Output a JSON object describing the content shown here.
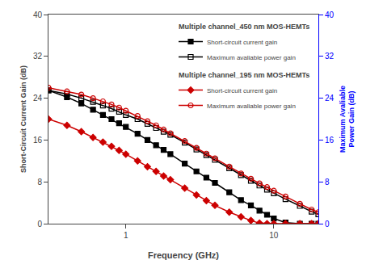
{
  "chart_data": {
    "type": "line",
    "xlabel": "Frequency (GHz)",
    "ylabel": "Short-Circuit Current Gain (dB)",
    "y2label": "Maximum Avaliable\nPower Gain (dB)",
    "log": "x",
    "grid": false,
    "legend": "upper right",
    "xlim": [
      0.3,
      20
    ],
    "xticks": [
      1,
      10
    ],
    "ylim": [
      0,
      40
    ],
    "yticks": [
      0,
      8,
      16,
      24,
      32,
      40
    ],
    "y2lim": [
      0,
      40
    ],
    "y2ticks": [
      0,
      8,
      16,
      24,
      32,
      40
    ],
    "x": [
      0.3,
      0.4,
      0.5,
      0.6,
      0.7,
      0.8,
      0.9,
      1.0,
      1.2,
      1.4,
      1.6,
      1.8,
      2.0,
      2.5,
      3.0,
      3.5,
      4.0,
      5.0,
      6.0,
      7.0,
      8.0,
      9.0,
      10.0,
      12.0,
      15.0,
      18.0,
      20.0
    ],
    "series": [
      {
        "name": "Short-circuit current gain",
        "group": "Multiple channel_450 nm MOS-HEMTs",
        "color": "#000000",
        "marker": "square",
        "values": [
          25.5,
          24.2,
          23.0,
          21.8,
          20.8,
          20.0,
          19.2,
          18.5,
          17.2,
          16.0,
          15.0,
          14.1,
          13.3,
          11.5,
          10.0,
          8.8,
          7.8,
          6.0,
          4.5,
          3.5,
          2.5,
          1.7,
          1.0,
          0.2,
          0.0,
          0.0,
          0.0
        ]
      },
      {
        "name": "Maximum avaliable power gain",
        "group": "Multiple channel_450 nm MOS-HEMTs",
        "color": "#000000",
        "marker": "square-open",
        "values": [
          25.5,
          24.8,
          24.0,
          23.3,
          22.6,
          22.0,
          21.4,
          20.8,
          20.0,
          19.1,
          18.3,
          17.6,
          17.0,
          15.5,
          14.2,
          13.1,
          12.2,
          10.6,
          9.3,
          8.2,
          7.3,
          6.5,
          5.8,
          4.7,
          3.4,
          2.3,
          1.8
        ]
      },
      {
        "name": "Short-circuit current gain",
        "group": "Multiple channel_195 nm MOS-HEMTs",
        "color": "#cc0000",
        "marker": "diamond",
        "values": [
          20.0,
          18.8,
          17.6,
          16.5,
          15.6,
          14.8,
          14.0,
          13.3,
          12.0,
          10.9,
          10.0,
          9.1,
          8.4,
          6.8,
          5.5,
          4.4,
          3.5,
          2.2,
          1.3,
          0.6,
          0.1,
          0.0,
          0.0,
          0.0,
          0.0,
          0.0,
          0.0
        ]
      },
      {
        "name": "Maximum avaliable power gain",
        "group": "Multiple channel_195 nm MOS-HEMTs",
        "color": "#cc0000",
        "marker": "circle-open",
        "values": [
          26.0,
          25.3,
          24.7,
          24.0,
          23.4,
          22.8,
          22.2,
          21.6,
          20.6,
          19.6,
          18.8,
          18.0,
          17.3,
          15.8,
          14.5,
          13.4,
          12.5,
          10.9,
          9.6,
          8.6,
          7.7,
          7.0,
          6.3,
          5.2,
          3.8,
          2.7,
          2.2
        ]
      }
    ]
  }
}
